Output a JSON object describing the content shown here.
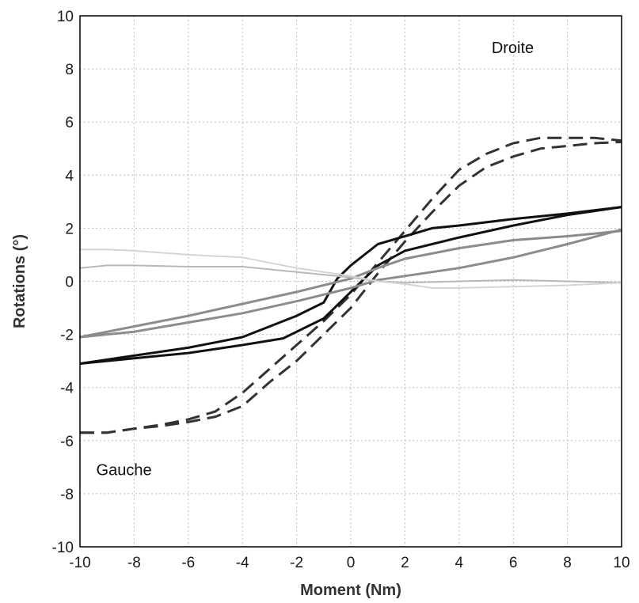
{
  "chart_data": {
    "type": "line",
    "xlabel": "Moment (Nm)",
    "ylabel": "Rotations (°)",
    "xlim": [
      -10,
      10
    ],
    "ylim": [
      -10,
      10
    ],
    "xticks": [
      -10,
      -8,
      -6,
      -4,
      -2,
      0,
      2,
      4,
      6,
      8,
      10
    ],
    "yticks": [
      -10,
      -8,
      -6,
      -4,
      -2,
      0,
      2,
      4,
      6,
      8,
      10
    ],
    "grid": true,
    "annotations": [
      {
        "text": "Droite",
        "x": 5.2,
        "y": 8.6
      },
      {
        "text": "Gauche",
        "x": -9.4,
        "y": -7.3
      }
    ],
    "series": [
      {
        "color": "#333333",
        "style": "dashed",
        "width": 3,
        "points": [
          [
            -10,
            -5.7
          ],
          [
            -9,
            -5.7
          ],
          [
            -8,
            -5.55
          ],
          [
            -7,
            -5.4
          ],
          [
            -6,
            -5.2
          ],
          [
            -5,
            -4.9
          ],
          [
            -4,
            -4.2
          ],
          [
            -3,
            -3.3
          ],
          [
            -2,
            -2.4
          ],
          [
            -1,
            -1.5
          ],
          [
            0,
            -0.5
          ],
          [
            1,
            0.7
          ],
          [
            2,
            1.9
          ],
          [
            3,
            3.1
          ],
          [
            4,
            4.2
          ],
          [
            5,
            4.8
          ],
          [
            6,
            5.2
          ],
          [
            7,
            5.4
          ],
          [
            8,
            5.4
          ],
          [
            9,
            5.4
          ],
          [
            10,
            5.3
          ]
        ]
      },
      {
        "color": "#333333",
        "style": "dashed",
        "width": 3,
        "points": [
          [
            -10,
            -5.7
          ],
          [
            -9,
            -5.7
          ],
          [
            -8,
            -5.55
          ],
          [
            -7,
            -5.45
          ],
          [
            -6,
            -5.3
          ],
          [
            -5,
            -5.1
          ],
          [
            -4,
            -4.7
          ],
          [
            -3,
            -3.8
          ],
          [
            -2,
            -3.0
          ],
          [
            -1,
            -2.0
          ],
          [
            0,
            -1.0
          ],
          [
            1,
            0.3
          ],
          [
            2,
            1.5
          ],
          [
            3,
            2.6
          ],
          [
            4,
            3.6
          ],
          [
            5,
            4.3
          ],
          [
            6,
            4.7
          ],
          [
            7,
            5.0
          ],
          [
            8,
            5.1
          ],
          [
            9,
            5.2
          ],
          [
            10,
            5.25
          ]
        ]
      },
      {
        "color": "#111111",
        "style": "solid",
        "width": 3,
        "points": [
          [
            -10,
            -3.1
          ],
          [
            -8,
            -2.8
          ],
          [
            -6,
            -2.5
          ],
          [
            -4,
            -2.1
          ],
          [
            -2,
            -1.3
          ],
          [
            -1,
            -0.8
          ],
          [
            -0.5,
            0.1
          ],
          [
            0,
            0.6
          ],
          [
            1,
            1.4
          ],
          [
            2,
            1.7
          ],
          [
            3,
            2.0
          ],
          [
            4,
            2.1
          ],
          [
            6,
            2.35
          ],
          [
            8,
            2.55
          ],
          [
            10,
            2.8
          ]
        ]
      },
      {
        "color": "#111111",
        "style": "solid",
        "width": 3,
        "points": [
          [
            -10,
            -3.1
          ],
          [
            -8,
            -2.9
          ],
          [
            -6,
            -2.7
          ],
          [
            -4,
            -2.4
          ],
          [
            -2.5,
            -2.15
          ],
          [
            -1,
            -1.4
          ],
          [
            0,
            -0.4
          ],
          [
            1,
            0.6
          ],
          [
            2,
            1.15
          ],
          [
            3,
            1.4
          ],
          [
            4,
            1.65
          ],
          [
            6,
            2.1
          ],
          [
            8,
            2.5
          ],
          [
            10,
            2.8
          ]
        ]
      },
      {
        "color": "#8c8c8c",
        "style": "solid",
        "width": 3,
        "points": [
          [
            -10,
            -2.1
          ],
          [
            -8,
            -1.7
          ],
          [
            -6,
            -1.3
          ],
          [
            -4,
            -0.85
          ],
          [
            -2,
            -0.4
          ],
          [
            0,
            0.1
          ],
          [
            1,
            0.5
          ],
          [
            2,
            0.85
          ],
          [
            4,
            1.25
          ],
          [
            6,
            1.55
          ],
          [
            8,
            1.7
          ],
          [
            10,
            1.9
          ]
        ]
      },
      {
        "color": "#8c8c8c",
        "style": "solid",
        "width": 3,
        "points": [
          [
            -10,
            -2.1
          ],
          [
            -8,
            -1.9
          ],
          [
            -6,
            -1.55
          ],
          [
            -4,
            -1.2
          ],
          [
            -2,
            -0.75
          ],
          [
            0,
            -0.25
          ],
          [
            1,
            0.05
          ],
          [
            2,
            0.2
          ],
          [
            4,
            0.5
          ],
          [
            6,
            0.9
          ],
          [
            8,
            1.4
          ],
          [
            10,
            1.95
          ]
        ]
      },
      {
        "color": "#b8b8b8",
        "style": "solid",
        "width": 2,
        "points": [
          [
            -10,
            0.5
          ],
          [
            -9,
            0.6
          ],
          [
            -8,
            0.6
          ],
          [
            -6,
            0.55
          ],
          [
            -4,
            0.55
          ],
          [
            -2,
            0.35
          ],
          [
            0,
            0.15
          ],
          [
            1,
            0.0
          ],
          [
            2,
            -0.05
          ],
          [
            4,
            0.0
          ],
          [
            6,
            0.05
          ],
          [
            8,
            0.0
          ],
          [
            10,
            -0.05
          ]
        ]
      },
      {
        "color": "#d4d4d4",
        "style": "solid",
        "width": 2,
        "points": [
          [
            -10,
            1.2
          ],
          [
            -9,
            1.2
          ],
          [
            -8,
            1.15
          ],
          [
            -6,
            1.0
          ],
          [
            -4,
            0.9
          ],
          [
            -2,
            0.5
          ],
          [
            0,
            0.2
          ],
          [
            1,
            0.0
          ],
          [
            2,
            -0.1
          ],
          [
            3,
            -0.25
          ],
          [
            4,
            -0.25
          ],
          [
            6,
            -0.2
          ],
          [
            8,
            -0.15
          ],
          [
            10,
            -0.05
          ]
        ]
      }
    ]
  }
}
